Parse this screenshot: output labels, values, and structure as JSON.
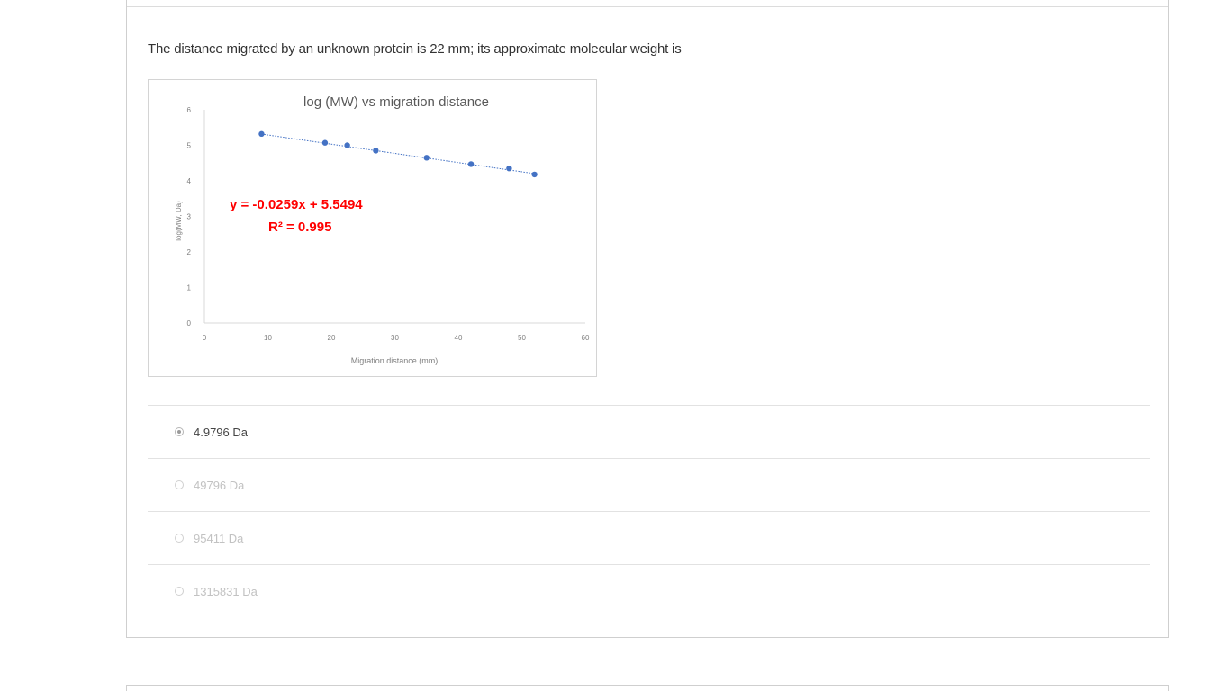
{
  "question": {
    "text": "The distance migrated by an unknown protein is 22 mm; its approximate molecular weight is"
  },
  "chart_data": {
    "type": "scatter",
    "title": "log (MW) vs migration distance",
    "xlabel": "Migration distance (mm)",
    "ylabel": "log(MW, Da)",
    "xlim": [
      0,
      60
    ],
    "ylim": [
      0,
      6
    ],
    "x_ticks": [
      "0",
      "10",
      "20",
      "30",
      "40",
      "50",
      "60"
    ],
    "y_ticks": [
      "0",
      "1",
      "2",
      "3",
      "4",
      "5",
      "6"
    ],
    "series": [
      {
        "color": "#4472c4",
        "x": [
          9,
          19,
          22.5,
          27,
          35,
          42,
          48,
          52
        ],
        "y": [
          5.32,
          5.07,
          5.0,
          4.85,
          4.65,
          4.47,
          4.35,
          4.18
        ]
      }
    ],
    "trendline": {
      "slope": -0.0259,
      "intercept": 5.5494,
      "x_range": [
        9,
        52
      ],
      "style": "dotted",
      "color": "#4472c4"
    },
    "equation_text": "y = -0.0259x + 5.5494",
    "r2_text": "R² = 0.995",
    "annotation_color": "#ff0000",
    "grid": false
  },
  "options": [
    {
      "label": "4.9796 Da",
      "selected": true
    },
    {
      "label": "49796 Da",
      "selected": false
    },
    {
      "label": "95411 Da",
      "selected": false
    },
    {
      "label": "1315831 Da",
      "selected": false
    }
  ]
}
